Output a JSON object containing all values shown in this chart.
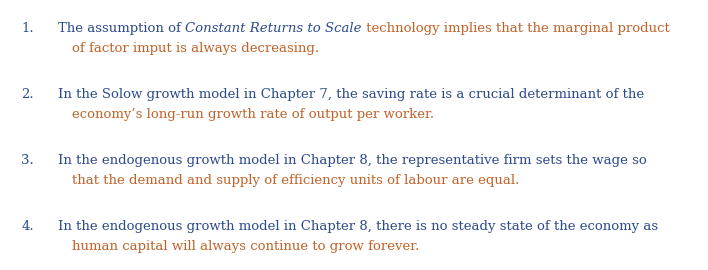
{
  "background_color": "#ffffff",
  "figsize": [
    7.08,
    2.7
  ],
  "dpi": 100,
  "blue_color": "#2c4a8c",
  "orange_color": "#c0632a",
  "font_size": 9.5,
  "items": [
    {
      "number": "1.",
      "line1_segments": [
        {
          "t": "The assumption of ",
          "italic": false,
          "color": "blue"
        },
        {
          "t": "Constant Returns to Scale",
          "italic": true,
          "color": "blue"
        },
        {
          "t": " technology implies that the marginal product",
          "italic": false,
          "color": "orange"
        }
      ],
      "line2": {
        "t": "of factor imput is always decreasing.",
        "color": "orange"
      }
    },
    {
      "number": "2.",
      "line1_segments": [
        {
          "t": "In the Solow growth model in Chapter 7, the saving rate is a crucial determinant of the",
          "italic": false,
          "color": "blue"
        }
      ],
      "line2": {
        "t": "economy’s long-run growth rate of output per worker.",
        "color": "orange"
      }
    },
    {
      "number": "3.",
      "line1_segments": [
        {
          "t": "In the endogenous growth model in Chapter 8, the representative firm sets the wage so",
          "italic": false,
          "color": "blue"
        }
      ],
      "line2": {
        "t": "that the demand and supply of efficiency units of labour are equal.",
        "color": "orange"
      }
    },
    {
      "number": "4.",
      "line1_segments": [
        {
          "t": "In the endogenous growth model in Chapter 8, there is no steady state of the economy as",
          "italic": false,
          "color": "blue"
        }
      ],
      "line2": {
        "t": "human capital will always continue to grow forever.",
        "color": "orange"
      }
    }
  ]
}
